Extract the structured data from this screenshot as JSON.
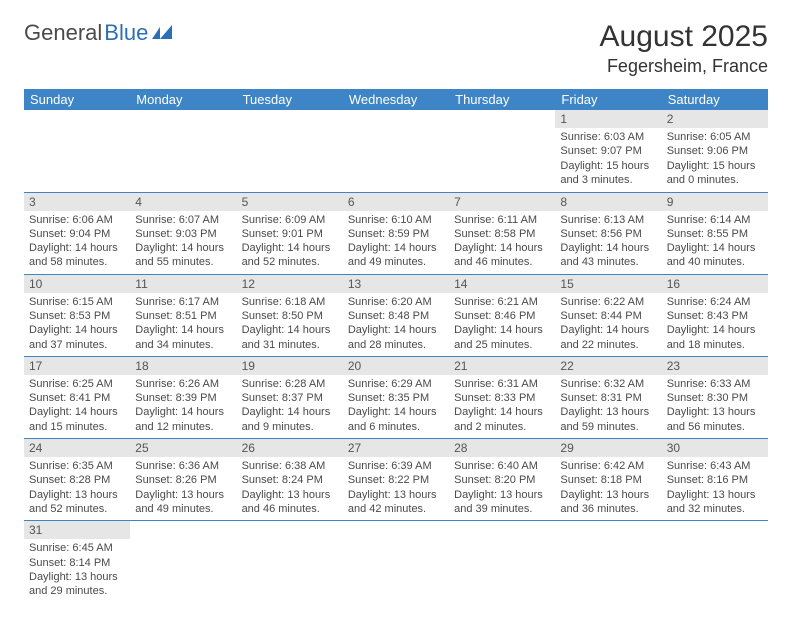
{
  "logo": {
    "general": "General",
    "blue": "Blue"
  },
  "title": "August 2025",
  "location": "Fegersheim, France",
  "colors": {
    "header_bg": "#3d85c6",
    "header_fg": "#ffffff",
    "daynum_bg": "#e6e6e6",
    "row_border": "#3d85c6",
    "text": "#4a4a4a",
    "logo_blue": "#2d6fb5"
  },
  "weekdays": [
    "Sunday",
    "Monday",
    "Tuesday",
    "Wednesday",
    "Thursday",
    "Friday",
    "Saturday"
  ],
  "weeks": [
    [
      null,
      null,
      null,
      null,
      null,
      {
        "n": "1",
        "sr": "Sunrise: 6:03 AM",
        "ss": "Sunset: 9:07 PM",
        "dl": "Daylight: 15 hours and 3 minutes."
      },
      {
        "n": "2",
        "sr": "Sunrise: 6:05 AM",
        "ss": "Sunset: 9:06 PM",
        "dl": "Daylight: 15 hours and 0 minutes."
      }
    ],
    [
      {
        "n": "3",
        "sr": "Sunrise: 6:06 AM",
        "ss": "Sunset: 9:04 PM",
        "dl": "Daylight: 14 hours and 58 minutes."
      },
      {
        "n": "4",
        "sr": "Sunrise: 6:07 AM",
        "ss": "Sunset: 9:03 PM",
        "dl": "Daylight: 14 hours and 55 minutes."
      },
      {
        "n": "5",
        "sr": "Sunrise: 6:09 AM",
        "ss": "Sunset: 9:01 PM",
        "dl": "Daylight: 14 hours and 52 minutes."
      },
      {
        "n": "6",
        "sr": "Sunrise: 6:10 AM",
        "ss": "Sunset: 8:59 PM",
        "dl": "Daylight: 14 hours and 49 minutes."
      },
      {
        "n": "7",
        "sr": "Sunrise: 6:11 AM",
        "ss": "Sunset: 8:58 PM",
        "dl": "Daylight: 14 hours and 46 minutes."
      },
      {
        "n": "8",
        "sr": "Sunrise: 6:13 AM",
        "ss": "Sunset: 8:56 PM",
        "dl": "Daylight: 14 hours and 43 minutes."
      },
      {
        "n": "9",
        "sr": "Sunrise: 6:14 AM",
        "ss": "Sunset: 8:55 PM",
        "dl": "Daylight: 14 hours and 40 minutes."
      }
    ],
    [
      {
        "n": "10",
        "sr": "Sunrise: 6:15 AM",
        "ss": "Sunset: 8:53 PM",
        "dl": "Daylight: 14 hours and 37 minutes."
      },
      {
        "n": "11",
        "sr": "Sunrise: 6:17 AM",
        "ss": "Sunset: 8:51 PM",
        "dl": "Daylight: 14 hours and 34 minutes."
      },
      {
        "n": "12",
        "sr": "Sunrise: 6:18 AM",
        "ss": "Sunset: 8:50 PM",
        "dl": "Daylight: 14 hours and 31 minutes."
      },
      {
        "n": "13",
        "sr": "Sunrise: 6:20 AM",
        "ss": "Sunset: 8:48 PM",
        "dl": "Daylight: 14 hours and 28 minutes."
      },
      {
        "n": "14",
        "sr": "Sunrise: 6:21 AM",
        "ss": "Sunset: 8:46 PM",
        "dl": "Daylight: 14 hours and 25 minutes."
      },
      {
        "n": "15",
        "sr": "Sunrise: 6:22 AM",
        "ss": "Sunset: 8:44 PM",
        "dl": "Daylight: 14 hours and 22 minutes."
      },
      {
        "n": "16",
        "sr": "Sunrise: 6:24 AM",
        "ss": "Sunset: 8:43 PM",
        "dl": "Daylight: 14 hours and 18 minutes."
      }
    ],
    [
      {
        "n": "17",
        "sr": "Sunrise: 6:25 AM",
        "ss": "Sunset: 8:41 PM",
        "dl": "Daylight: 14 hours and 15 minutes."
      },
      {
        "n": "18",
        "sr": "Sunrise: 6:26 AM",
        "ss": "Sunset: 8:39 PM",
        "dl": "Daylight: 14 hours and 12 minutes."
      },
      {
        "n": "19",
        "sr": "Sunrise: 6:28 AM",
        "ss": "Sunset: 8:37 PM",
        "dl": "Daylight: 14 hours and 9 minutes."
      },
      {
        "n": "20",
        "sr": "Sunrise: 6:29 AM",
        "ss": "Sunset: 8:35 PM",
        "dl": "Daylight: 14 hours and 6 minutes."
      },
      {
        "n": "21",
        "sr": "Sunrise: 6:31 AM",
        "ss": "Sunset: 8:33 PM",
        "dl": "Daylight: 14 hours and 2 minutes."
      },
      {
        "n": "22",
        "sr": "Sunrise: 6:32 AM",
        "ss": "Sunset: 8:31 PM",
        "dl": "Daylight: 13 hours and 59 minutes."
      },
      {
        "n": "23",
        "sr": "Sunrise: 6:33 AM",
        "ss": "Sunset: 8:30 PM",
        "dl": "Daylight: 13 hours and 56 minutes."
      }
    ],
    [
      {
        "n": "24",
        "sr": "Sunrise: 6:35 AM",
        "ss": "Sunset: 8:28 PM",
        "dl": "Daylight: 13 hours and 52 minutes."
      },
      {
        "n": "25",
        "sr": "Sunrise: 6:36 AM",
        "ss": "Sunset: 8:26 PM",
        "dl": "Daylight: 13 hours and 49 minutes."
      },
      {
        "n": "26",
        "sr": "Sunrise: 6:38 AM",
        "ss": "Sunset: 8:24 PM",
        "dl": "Daylight: 13 hours and 46 minutes."
      },
      {
        "n": "27",
        "sr": "Sunrise: 6:39 AM",
        "ss": "Sunset: 8:22 PM",
        "dl": "Daylight: 13 hours and 42 minutes."
      },
      {
        "n": "28",
        "sr": "Sunrise: 6:40 AM",
        "ss": "Sunset: 8:20 PM",
        "dl": "Daylight: 13 hours and 39 minutes."
      },
      {
        "n": "29",
        "sr": "Sunrise: 6:42 AM",
        "ss": "Sunset: 8:18 PM",
        "dl": "Daylight: 13 hours and 36 minutes."
      },
      {
        "n": "30",
        "sr": "Sunrise: 6:43 AM",
        "ss": "Sunset: 8:16 PM",
        "dl": "Daylight: 13 hours and 32 minutes."
      }
    ],
    [
      {
        "n": "31",
        "sr": "Sunrise: 6:45 AM",
        "ss": "Sunset: 8:14 PM",
        "dl": "Daylight: 13 hours and 29 minutes."
      },
      null,
      null,
      null,
      null,
      null,
      null
    ]
  ]
}
